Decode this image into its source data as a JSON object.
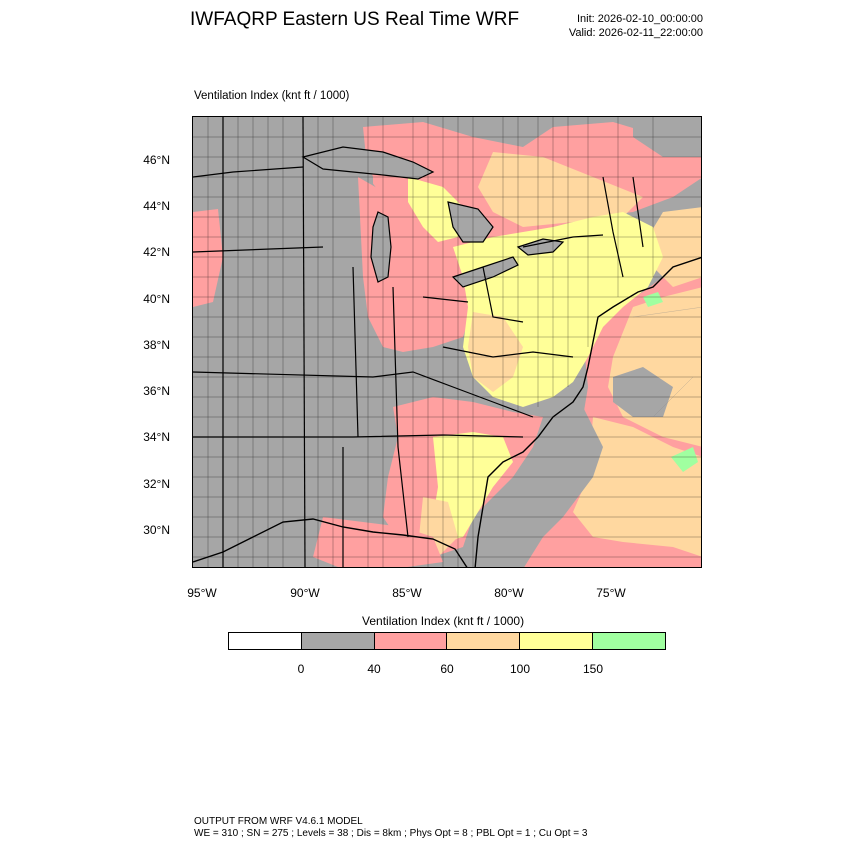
{
  "header": {
    "title": "IWFAQRP Eastern US Real Time WRF",
    "init": "Init: 2026-02-10_00:00:00",
    "valid": "Valid: 2026-02-11_22:00:00"
  },
  "map": {
    "field_label": "Ventilation Index   (knt ft / 1000)",
    "lat_labels": [
      "46°N",
      "44°N",
      "42°N",
      "40°N",
      "38°N",
      "36°N",
      "34°N",
      "32°N",
      "30°N"
    ],
    "lon_labels": [
      "95°W",
      "90°W",
      "85°W",
      "80°W",
      "75°W"
    ],
    "colors": {
      "gray": "#a6a6a6",
      "pink": "#ffa0a0",
      "tan": "#ffd8a0",
      "yellow": "#ffff98",
      "green": "#a0ffa0"
    }
  },
  "legend": {
    "title": "Ventilation Index  (knt ft / 1000)",
    "colors": [
      "#ffffff",
      "#a6a6a6",
      "#ffa0a0",
      "#ffd8a0",
      "#ffff98",
      "#a0ffa0"
    ],
    "ticks": [
      "0",
      "40",
      "60",
      "100",
      "150"
    ]
  },
  "footer": {
    "line1": "OUTPUT FROM WRF V4.6.1 MODEL",
    "line2": "WE = 310 ; SN = 275 ; Levels = 38 ; Dis = 8km ; Phys Opt = 8 ; PBL Opt = 1 ; Cu Opt = 3"
  }
}
